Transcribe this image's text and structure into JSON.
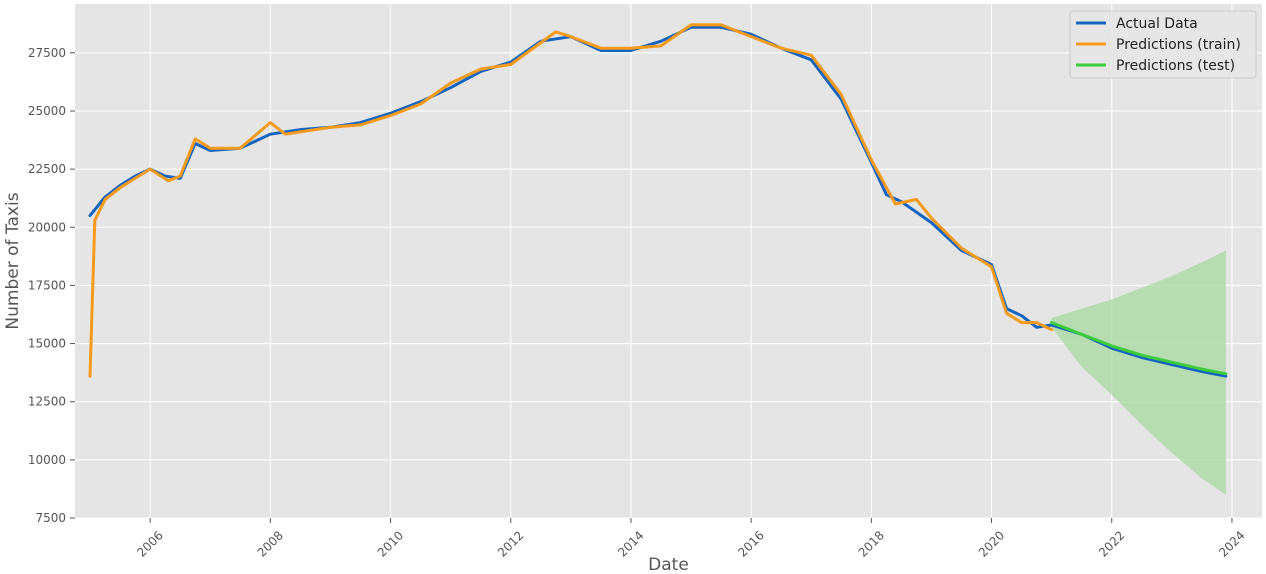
{
  "chart_data": {
    "type": "line",
    "title": "",
    "xlabel": "Date",
    "ylabel": "Number of Taxis",
    "x_axis": "date",
    "xlim": [
      2004.75,
      2024.5
    ],
    "ylim": [
      7500,
      29600
    ],
    "x_ticks": [
      "2006",
      "2008",
      "2010",
      "2012",
      "2014",
      "2016",
      "2018",
      "2020",
      "2022",
      "2024"
    ],
    "y_ticks": [
      7500,
      10000,
      12500,
      15000,
      17500,
      20000,
      22500,
      25000,
      27500
    ],
    "grid": true,
    "legend_position": "top-right",
    "series": [
      {
        "name": "Actual Data",
        "color": "#1565c0",
        "points": [
          [
            2005.0,
            20500
          ],
          [
            2005.25,
            21300
          ],
          [
            2005.5,
            21800
          ],
          [
            2005.75,
            22200
          ],
          [
            2006.0,
            22500
          ],
          [
            2006.25,
            22200
          ],
          [
            2006.5,
            22100
          ],
          [
            2006.75,
            23600
          ],
          [
            2007.0,
            23300
          ],
          [
            2007.5,
            23400
          ],
          [
            2008.0,
            24000
          ],
          [
            2008.5,
            24200
          ],
          [
            2009.0,
            24300
          ],
          [
            2009.5,
            24500
          ],
          [
            2010.0,
            24900
          ],
          [
            2010.5,
            25400
          ],
          [
            2011.0,
            26000
          ],
          [
            2011.5,
            26700
          ],
          [
            2012.0,
            27100
          ],
          [
            2012.5,
            28000
          ],
          [
            2013.0,
            28200
          ],
          [
            2013.5,
            27600
          ],
          [
            2014.0,
            27600
          ],
          [
            2014.5,
            28000
          ],
          [
            2015.0,
            28600
          ],
          [
            2015.5,
            28600
          ],
          [
            2016.0,
            28300
          ],
          [
            2016.5,
            27700
          ],
          [
            2017.0,
            27200
          ],
          [
            2017.5,
            25500
          ],
          [
            2018.0,
            22800
          ],
          [
            2018.25,
            21400
          ],
          [
            2018.5,
            21100
          ],
          [
            2019.0,
            20200
          ],
          [
            2019.5,
            19000
          ],
          [
            2020.0,
            18400
          ],
          [
            2020.25,
            16500
          ],
          [
            2020.5,
            16200
          ],
          [
            2020.75,
            15700
          ],
          [
            2021.0,
            15800
          ],
          [
            2021.5,
            15400
          ],
          [
            2022.0,
            14800
          ],
          [
            2022.5,
            14400
          ],
          [
            2023.0,
            14100
          ],
          [
            2023.5,
            13800
          ],
          [
            2023.9,
            13600
          ]
        ]
      },
      {
        "name": "Predictions (train)",
        "color": "#f59a1b",
        "points": [
          [
            2005.0,
            13600
          ],
          [
            2005.08,
            20300
          ],
          [
            2005.25,
            21200
          ],
          [
            2005.5,
            21700
          ],
          [
            2005.75,
            22100
          ],
          [
            2006.0,
            22500
          ],
          [
            2006.3,
            22000
          ],
          [
            2006.5,
            22200
          ],
          [
            2006.75,
            23800
          ],
          [
            2007.0,
            23400
          ],
          [
            2007.5,
            23400
          ],
          [
            2008.0,
            24500
          ],
          [
            2008.25,
            24000
          ],
          [
            2008.5,
            24100
          ],
          [
            2009.0,
            24300
          ],
          [
            2009.5,
            24400
          ],
          [
            2010.0,
            24800
          ],
          [
            2010.5,
            25300
          ],
          [
            2011.0,
            26200
          ],
          [
            2011.5,
            26800
          ],
          [
            2012.0,
            27000
          ],
          [
            2012.75,
            28400
          ],
          [
            2013.0,
            28200
          ],
          [
            2013.5,
            27700
          ],
          [
            2014.0,
            27700
          ],
          [
            2014.5,
            27800
          ],
          [
            2015.0,
            28700
          ],
          [
            2015.5,
            28700
          ],
          [
            2016.0,
            28200
          ],
          [
            2016.5,
            27700
          ],
          [
            2017.0,
            27400
          ],
          [
            2017.5,
            25700
          ],
          [
            2018.0,
            22900
          ],
          [
            2018.4,
            21000
          ],
          [
            2018.75,
            21200
          ],
          [
            2019.0,
            20400
          ],
          [
            2019.5,
            19100
          ],
          [
            2020.0,
            18300
          ],
          [
            2020.25,
            16300
          ],
          [
            2020.5,
            15900
          ],
          [
            2020.75,
            15900
          ],
          [
            2021.0,
            15600
          ]
        ]
      },
      {
        "name": "Predictions (test)",
        "color": "#3ccc3c",
        "points": [
          [
            2021.0,
            15900
          ],
          [
            2021.5,
            15400
          ],
          [
            2022.0,
            14900
          ],
          [
            2022.5,
            14500
          ],
          [
            2023.0,
            14200
          ],
          [
            2023.5,
            13900
          ],
          [
            2023.9,
            13700
          ]
        ]
      }
    ],
    "confidence_band": {
      "color": "#a8d8a0",
      "x": [
        2021.0,
        2021.5,
        2022.0,
        2022.5,
        2023.0,
        2023.5,
        2023.9
      ],
      "upper": [
        16100,
        16500,
        16900,
        17400,
        17900,
        18500,
        19000
      ],
      "lower": [
        15700,
        14000,
        12800,
        11500,
        10300,
        9200,
        8500
      ]
    }
  }
}
